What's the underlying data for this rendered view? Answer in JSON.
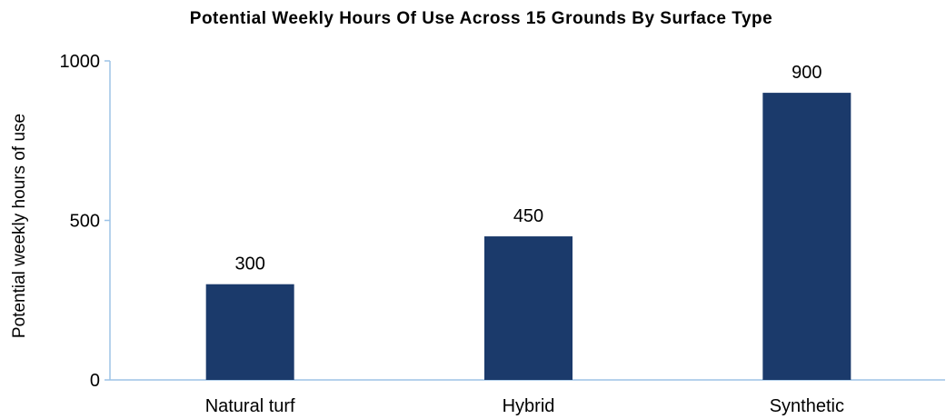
{
  "chart_data": {
    "type": "bar",
    "title": "Potential Weekly Hours Of Use Across 15 Grounds By Surface Type",
    "xlabel": "",
    "ylabel": "Potential weekly hours of use",
    "categories": [
      "Natural turf",
      "Hybrid",
      "Synthetic"
    ],
    "values": [
      300,
      450,
      900
    ],
    "data_labels": [
      "300",
      "450",
      "900"
    ],
    "ylim": [
      0,
      1000
    ],
    "yticks": [
      0,
      500,
      1000
    ],
    "ytick_labels": [
      "0",
      "500",
      "1000"
    ],
    "grid": false,
    "legend": "none",
    "bar_color": "#1b3a6b",
    "axis_color": "#9dc3e6"
  }
}
